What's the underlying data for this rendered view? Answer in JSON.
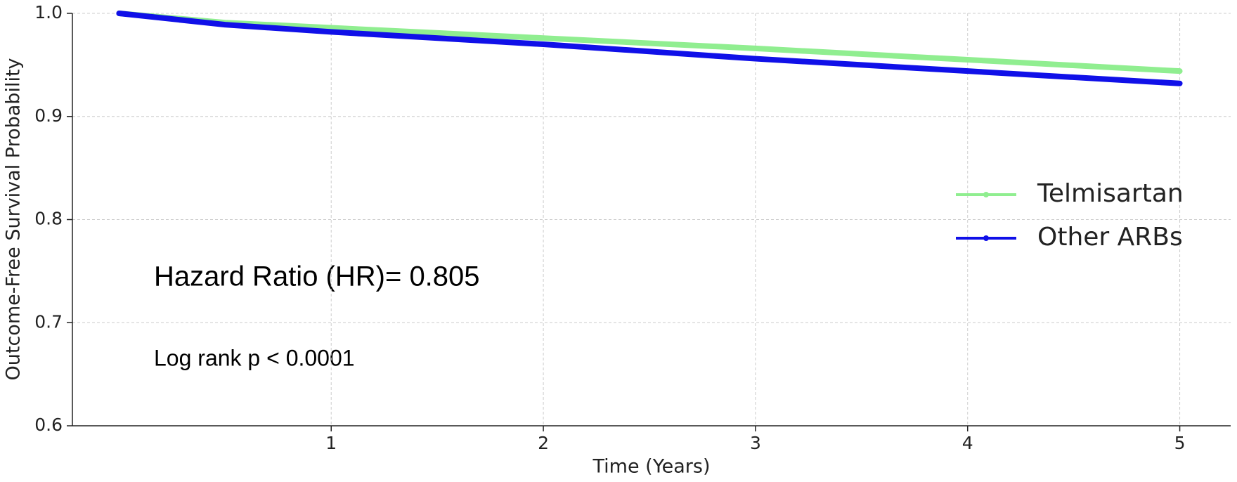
{
  "chart_data": {
    "type": "line",
    "xlabel": "Time (Years)",
    "ylabel": "Outcome-Free Survival Probability",
    "x": [
      0,
      0.5,
      1,
      2,
      3,
      4,
      5
    ],
    "series": [
      {
        "name": "Telmisartan",
        "color": "#90ee90",
        "values": [
          1.0,
          0.991,
          0.986,
          0.976,
          0.966,
          0.955,
          0.944
        ]
      },
      {
        "name": "Other ARBs",
        "color": "#1010e8",
        "values": [
          1.0,
          0.989,
          0.982,
          0.97,
          0.956,
          0.944,
          0.932
        ]
      }
    ],
    "xlim": [
      -0.22,
      5.24
    ],
    "xticks": [
      1,
      2,
      3,
      4,
      5
    ],
    "ylim": [
      0.6,
      1.0
    ],
    "yticks": [
      {
        "value": 0.6,
        "label": "0.6"
      },
      {
        "value": 0.7,
        "label": "0.7"
      },
      {
        "value": 0.8,
        "label": "0.8"
      },
      {
        "value": 0.9,
        "label": "0.9"
      },
      {
        "value": 1.0,
        "label": "1.0"
      }
    ],
    "grid": true,
    "legend": "center right",
    "annotations": [
      "Hazard Ratio (HR)=  0.805",
      "Log rank p < 0.0001"
    ]
  }
}
